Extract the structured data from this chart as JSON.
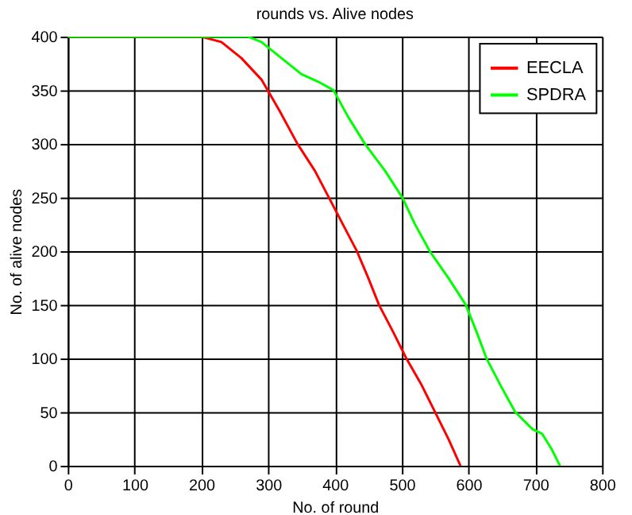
{
  "chart_data": {
    "type": "line",
    "title": "rounds vs. Alive nodes",
    "xlabel": "No. of round",
    "ylabel": "No. of alive nodes",
    "xlim": [
      0,
      800
    ],
    "xticks": [
      0,
      100,
      200,
      300,
      400,
      500,
      600,
      700,
      800
    ],
    "ylim": [
      0,
      400
    ],
    "yticks": [
      0,
      50,
      100,
      150,
      200,
      250,
      300,
      350,
      400
    ],
    "grid": true,
    "legend": "top right",
    "line_style": "solid",
    "marker": "none",
    "series": [
      {
        "name": "EECLA",
        "color": "#ff0000",
        "x": [
          0,
          200,
          230,
          260,
          290,
          317,
          344,
          370,
          391,
          412,
          433,
          450,
          466,
          487,
          507,
          530,
          550,
          570,
          588
        ],
        "values": [
          400,
          400,
          395,
          380,
          360,
          331,
          300,
          275,
          250,
          225,
          200,
          175,
          150,
          125,
          100,
          75,
          50,
          25,
          0
        ]
      },
      {
        "name": "SPDRA",
        "color": "#00ff00",
        "x": [
          0,
          270,
          290,
          320,
          350,
          375,
          398,
          420,
          445,
          475,
          501,
          520,
          542,
          570,
          596,
          612,
          627,
          648,
          670,
          696,
          710,
          725,
          737
        ],
        "values": [
          400,
          400,
          395,
          380,
          365,
          358,
          350,
          325,
          300,
          275,
          250,
          225,
          200,
          175,
          150,
          125,
          100,
          75,
          50,
          34,
          30,
          15,
          0
        ]
      }
    ]
  }
}
